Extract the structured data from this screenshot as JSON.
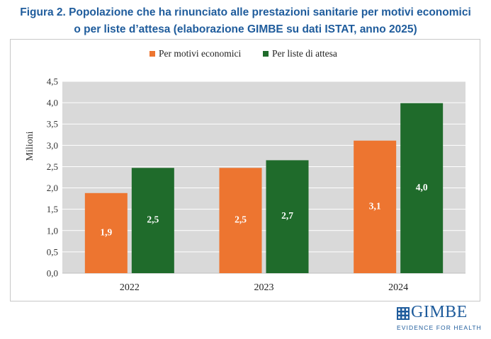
{
  "title_line1": "Figura 2. Popolazione che ha rinunciato alle prestazioni sanitarie per motivi economici",
  "title_line2": "o per liste d’attesa (elaborazione GIMBE su dati ISTAT, anno 2025)",
  "logo": {
    "name": "GIMBE",
    "tagline": "EVIDENCE FOR HEALTH"
  },
  "colors": {
    "economici": "#ed7530",
    "attesa": "#1f6b2b",
    "plot_bg": "#d9d9d9",
    "title": "#1f5c9c"
  },
  "chart_data": {
    "type": "bar",
    "title": "",
    "xlabel": "",
    "ylabel": "Milioni",
    "ylim": [
      0,
      4.5
    ],
    "yticks": [
      "0,0",
      "0,5",
      "1,0",
      "1,5",
      "2,0",
      "2,5",
      "3,0",
      "3,5",
      "4,0",
      "4,5"
    ],
    "categories": [
      "2022",
      "2023",
      "2024"
    ],
    "legend_position": "top-center",
    "grid": true,
    "series": [
      {
        "name": "Per motivi economici",
        "values": [
          1.88,
          2.47,
          3.11
        ],
        "labels": [
          "1,9",
          "2,5",
          "3,1"
        ],
        "color": "#ed7530"
      },
      {
        "name": "Per liste di attesa",
        "values": [
          2.47,
          2.65,
          3.99
        ],
        "labels": [
          "2,5",
          "2,7",
          "4,0"
        ],
        "color": "#1f6b2b"
      }
    ]
  }
}
